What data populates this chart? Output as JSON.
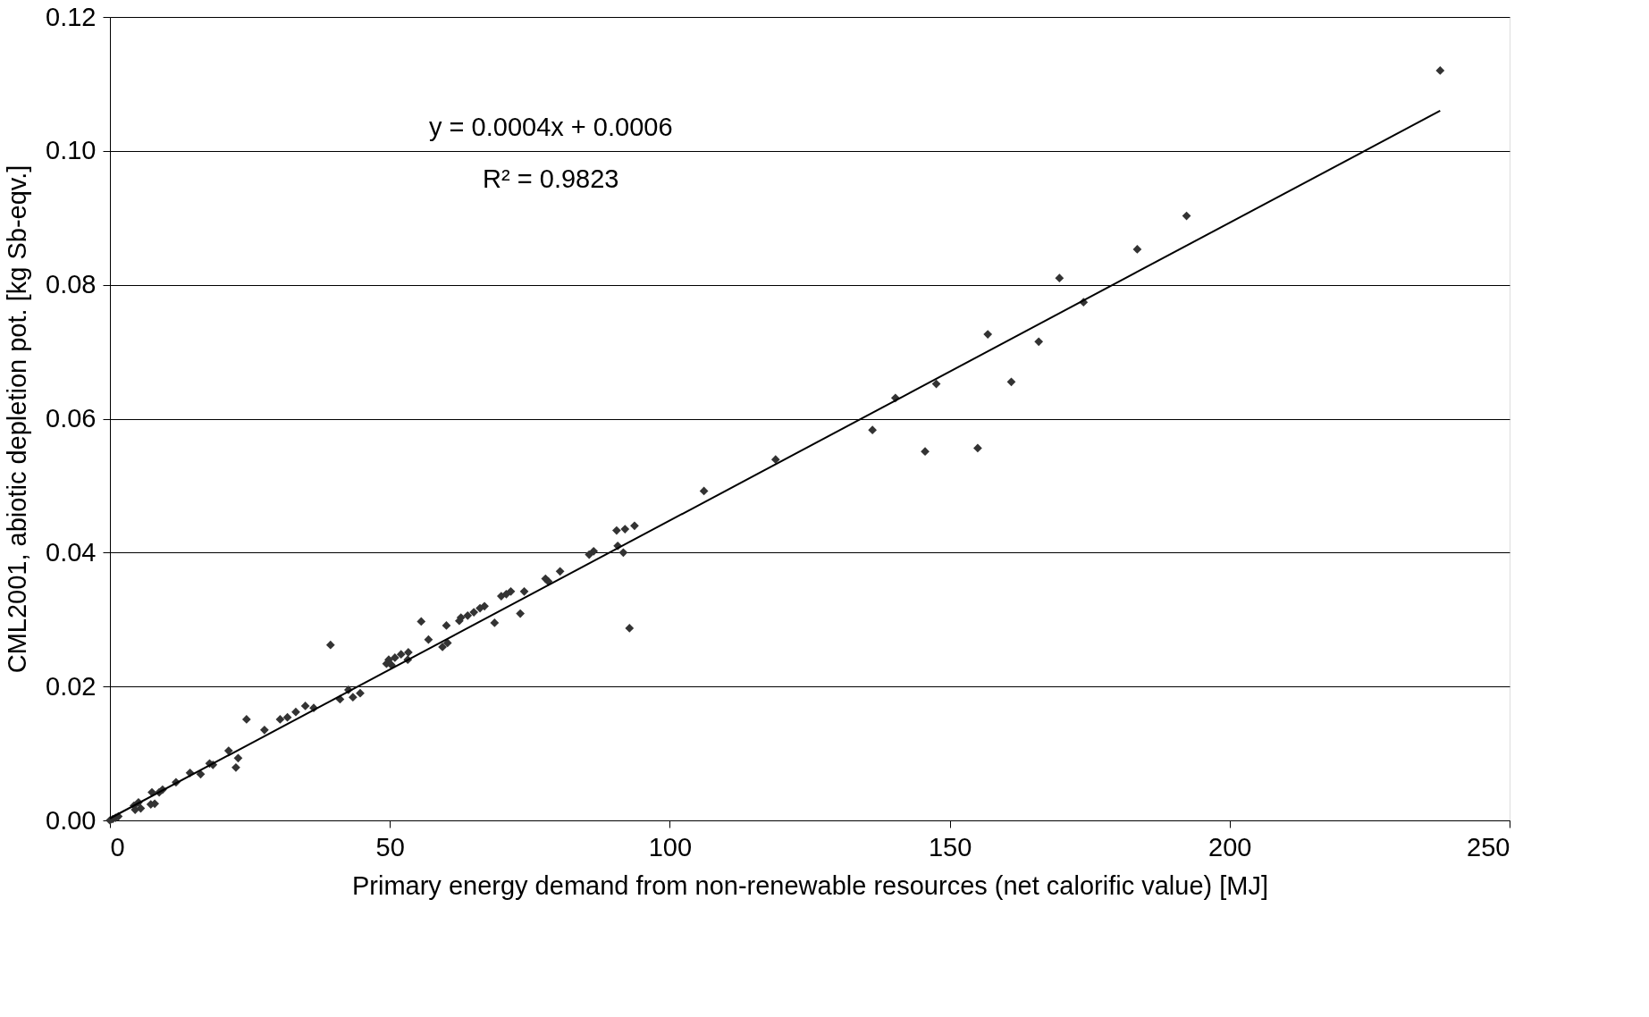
{
  "chart_data": {
    "type": "scatter",
    "xlabel": "Primary energy demand from non-renewable resources (net calorific value) [MJ]",
    "ylabel": "CML2001, abiotic depletion pot. [kg Sb-eqv.]",
    "annotations": [
      "y = 0.0004x + 0.0006",
      "R² = 0.9823"
    ],
    "xlim": [
      0,
      250
    ],
    "xticks": [
      0,
      50,
      100,
      150,
      200,
      250
    ],
    "ylim": [
      0,
      0.12
    ],
    "yticks": [
      {
        "value": 0,
        "label": "0.00"
      },
      {
        "value": 0.02,
        "label": "0.02"
      },
      {
        "value": 0.04,
        "label": "0.04"
      },
      {
        "value": 0.06,
        "label": "0.06"
      },
      {
        "value": 0.08,
        "label": "0.08"
      },
      {
        "value": 0.1,
        "label": "0.10"
      },
      {
        "value": 0.12,
        "label": "0.12"
      }
    ],
    "grid": "y",
    "series": [
      {
        "type": "scatter",
        "marker": "diamond",
        "color": "#333333",
        "x": [
          237.6,
          192.3,
          183.5,
          169.6,
          173.9,
          156.8,
          165.9,
          161.0,
          147.6,
          140.3,
          136.2,
          145.6,
          155.0,
          118.9,
          106.1,
          93.7,
          92.0,
          90.5,
          90.7,
          91.7,
          92.8,
          86.4,
          85.6,
          80.4,
          77.8,
          78.3,
          74.0,
          71.6,
          70.8,
          69.9,
          73.3,
          68.7,
          66.9,
          66.1,
          65.0,
          63.9,
          62.7,
          62.4,
          60.1,
          56.9,
          55.6,
          60.3,
          59.4,
          53.3,
          52.0,
          53.2,
          50.9,
          49.8,
          49.4,
          50.3,
          39.4,
          44.7,
          42.6,
          43.4,
          41.1,
          36.4,
          34.9,
          33.2,
          31.7,
          30.4,
          24.4,
          27.6,
          22.9,
          22.5,
          21.2,
          17.8,
          18.4,
          16.2,
          14.3,
          11.8,
          9.4,
          8.8,
          7.5,
          7.3,
          8.0,
          5.1,
          4.5,
          5.5,
          4.3,
          1.5,
          1.0,
          0.5,
          0.0
        ],
        "values": [
          0.112,
          0.0903,
          0.0853,
          0.081,
          0.0774,
          0.0726,
          0.0715,
          0.0655,
          0.0652,
          0.0631,
          0.0583,
          0.0551,
          0.0556,
          0.0539,
          0.0492,
          0.044,
          0.0435,
          0.0433,
          0.041,
          0.04,
          0.0287,
          0.0402,
          0.0397,
          0.0372,
          0.0361,
          0.0357,
          0.0342,
          0.0342,
          0.0338,
          0.0335,
          0.0309,
          0.0295,
          0.032,
          0.0317,
          0.0311,
          0.0306,
          0.0303,
          0.0298,
          0.0291,
          0.027,
          0.0297,
          0.0265,
          0.0259,
          0.0251,
          0.0248,
          0.024,
          0.0243,
          0.024,
          0.0234,
          0.0232,
          0.0262,
          0.019,
          0.0195,
          0.0184,
          0.0181,
          0.0168,
          0.0171,
          0.0162,
          0.0154,
          0.0151,
          0.0151,
          0.0135,
          0.0093,
          0.0079,
          0.0104,
          0.0085,
          0.0083,
          0.0069,
          0.0071,
          0.0057,
          0.0046,
          0.0042,
          0.0042,
          0.0024,
          0.0025,
          0.0027,
          0.0016,
          0.0018,
          0.0022,
          0.0006,
          0.0004,
          0.0002,
          0.0
        ]
      },
      {
        "type": "line",
        "marker": "none",
        "line_style": "solid",
        "color": "#000000",
        "x": [
          0,
          237.6
        ],
        "values": [
          0.0003,
          0.106
        ]
      }
    ]
  }
}
